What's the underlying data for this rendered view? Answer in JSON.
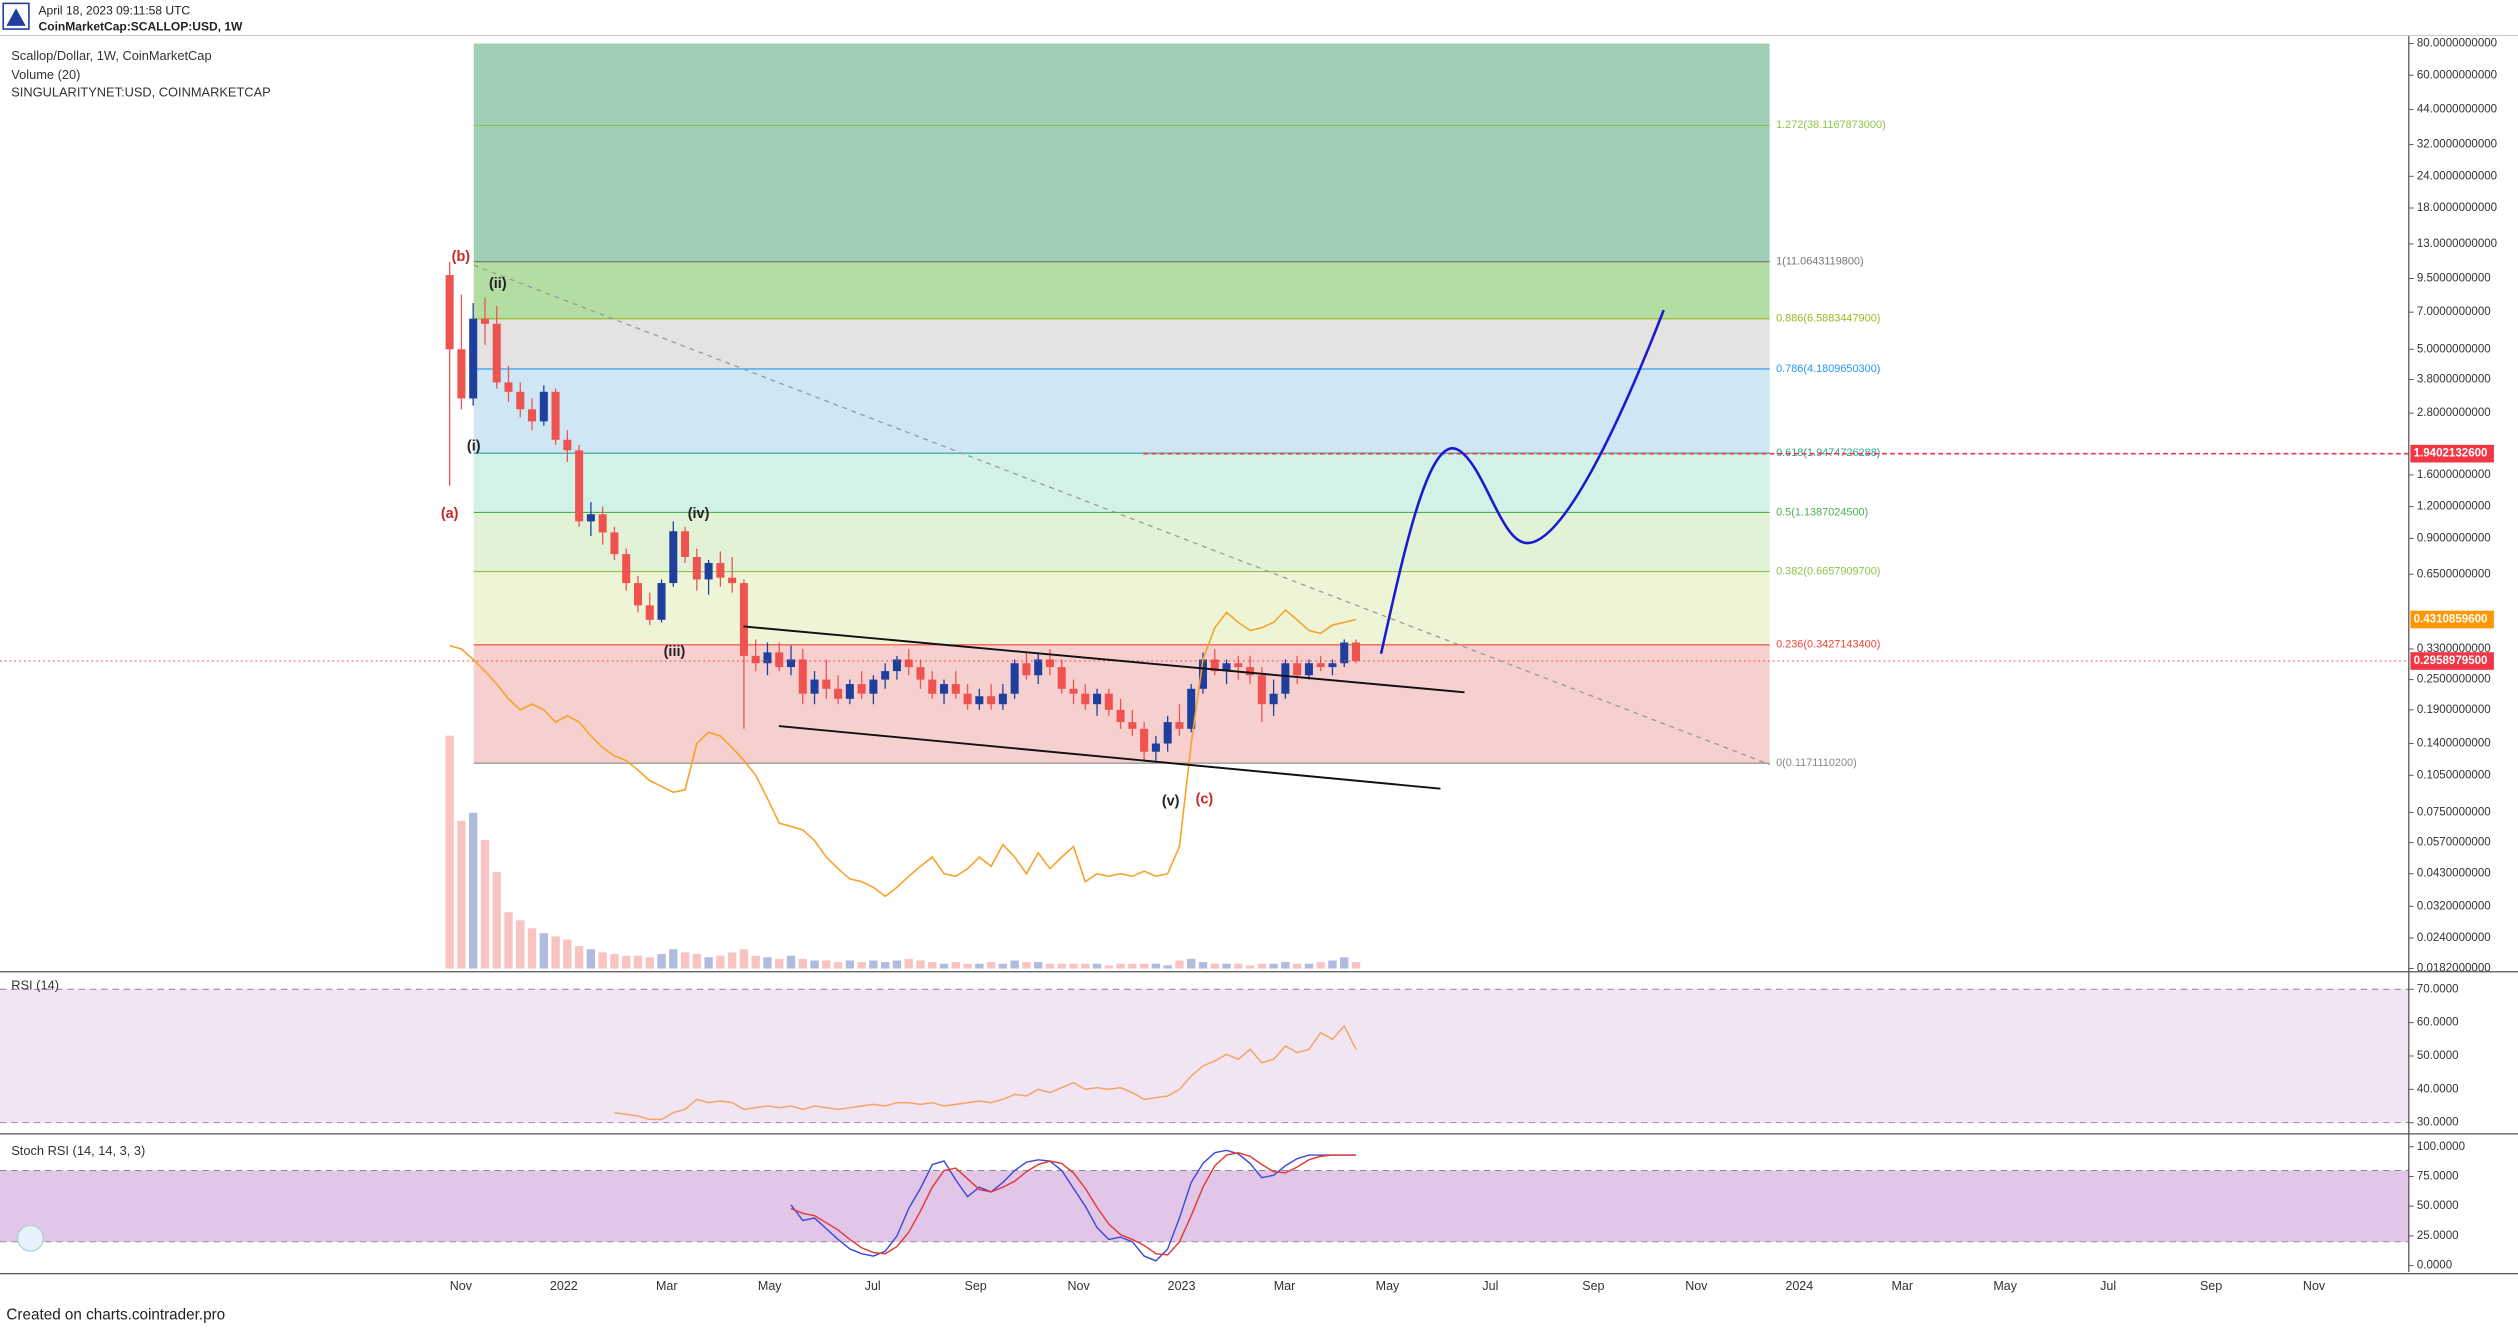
{
  "header": {
    "timestamp": "April 18, 2023 09:11:58 UTC",
    "symbol": "CoinMarketCap:SCALLOP:USD, 1W"
  },
  "footer": "Created on charts.cointrader.pro",
  "time_axis": [
    "Nov",
    "2022",
    "Mar",
    "May",
    "Jul",
    "Sep",
    "Nov",
    "2023",
    "Mar",
    "May",
    "Jul",
    "Sep",
    "Nov",
    "2024",
    "Mar",
    "May",
    "Jul",
    "Sep",
    "Nov"
  ],
  "chart_data": [
    {
      "type": "candlestick",
      "title": "Scallop/Dollar, 1W, CoinMarketCap",
      "log_scale": true,
      "up_color": "#1e3f9e",
      "down_color": "#ef5350",
      "candles": [
        [
          9.8,
          11.06,
          1.45,
          5.0
        ],
        [
          5.0,
          8.2,
          2.9,
          3.2
        ],
        [
          3.2,
          7.6,
          3.0,
          6.6
        ],
        [
          6.6,
          8.0,
          5.2,
          6.3
        ],
        [
          6.3,
          7.4,
          3.5,
          3.7
        ],
        [
          3.7,
          4.3,
          3.1,
          3.4
        ],
        [
          3.4,
          3.7,
          2.7,
          2.9
        ],
        [
          2.9,
          3.2,
          2.4,
          2.6
        ],
        [
          2.6,
          3.6,
          2.5,
          3.4
        ],
        [
          3.4,
          3.5,
          2.1,
          2.2
        ],
        [
          2.2,
          2.4,
          1.8,
          2.0
        ],
        [
          2.0,
          2.1,
          1.0,
          1.05
        ],
        [
          1.05,
          1.25,
          0.92,
          1.12
        ],
        [
          1.12,
          1.2,
          0.85,
          0.95
        ],
        [
          0.95,
          1.0,
          0.74,
          0.78
        ],
        [
          0.78,
          0.82,
          0.56,
          0.6
        ],
        [
          0.6,
          0.64,
          0.46,
          0.49
        ],
        [
          0.49,
          0.55,
          0.41,
          0.43
        ],
        [
          0.43,
          0.62,
          0.42,
          0.6
        ],
        [
          0.6,
          1.05,
          0.58,
          0.96
        ],
        [
          0.96,
          1.0,
          0.72,
          0.76
        ],
        [
          0.76,
          0.82,
          0.56,
          0.62
        ],
        [
          0.62,
          0.74,
          0.54,
          0.72
        ],
        [
          0.72,
          0.8,
          0.58,
          0.63
        ],
        [
          0.63,
          0.76,
          0.55,
          0.6
        ],
        [
          0.6,
          0.62,
          0.16,
          0.31
        ],
        [
          0.31,
          0.36,
          0.27,
          0.29
        ],
        [
          0.29,
          0.35,
          0.26,
          0.32
        ],
        [
          0.32,
          0.35,
          0.27,
          0.28
        ],
        [
          0.28,
          0.34,
          0.26,
          0.3
        ],
        [
          0.3,
          0.33,
          0.2,
          0.22
        ],
        [
          0.22,
          0.27,
          0.2,
          0.25
        ],
        [
          0.25,
          0.3,
          0.21,
          0.23
        ],
        [
          0.23,
          0.26,
          0.2,
          0.21
        ],
        [
          0.21,
          0.25,
          0.2,
          0.24
        ],
        [
          0.24,
          0.27,
          0.21,
          0.22
        ],
        [
          0.22,
          0.26,
          0.2,
          0.25
        ],
        [
          0.25,
          0.29,
          0.23,
          0.27
        ],
        [
          0.27,
          0.31,
          0.25,
          0.3
        ],
        [
          0.3,
          0.33,
          0.26,
          0.28
        ],
        [
          0.28,
          0.3,
          0.23,
          0.25
        ],
        [
          0.25,
          0.27,
          0.21,
          0.22
        ],
        [
          0.22,
          0.25,
          0.2,
          0.24
        ],
        [
          0.24,
          0.27,
          0.21,
          0.22
        ],
        [
          0.22,
          0.24,
          0.19,
          0.2
        ],
        [
          0.2,
          0.23,
          0.19,
          0.215
        ],
        [
          0.215,
          0.24,
          0.19,
          0.2
        ],
        [
          0.2,
          0.24,
          0.19,
          0.22
        ],
        [
          0.22,
          0.3,
          0.21,
          0.29
        ],
        [
          0.29,
          0.32,
          0.25,
          0.26
        ],
        [
          0.26,
          0.32,
          0.24,
          0.3
        ],
        [
          0.3,
          0.33,
          0.26,
          0.28
        ],
        [
          0.28,
          0.3,
          0.22,
          0.23
        ],
        [
          0.23,
          0.25,
          0.2,
          0.22
        ],
        [
          0.22,
          0.24,
          0.19,
          0.2
        ],
        [
          0.2,
          0.23,
          0.18,
          0.22
        ],
        [
          0.22,
          0.23,
          0.18,
          0.19
        ],
        [
          0.19,
          0.21,
          0.16,
          0.17
        ],
        [
          0.17,
          0.19,
          0.15,
          0.16
        ],
        [
          0.16,
          0.17,
          0.12,
          0.13
        ],
        [
          0.13,
          0.15,
          0.12,
          0.14
        ],
        [
          0.14,
          0.18,
          0.13,
          0.17
        ],
        [
          0.17,
          0.2,
          0.15,
          0.16
        ],
        [
          0.16,
          0.24,
          0.155,
          0.23
        ],
        [
          0.23,
          0.32,
          0.22,
          0.3
        ],
        [
          0.3,
          0.33,
          0.26,
          0.27
        ],
        [
          0.27,
          0.3,
          0.24,
          0.29
        ],
        [
          0.29,
          0.31,
          0.25,
          0.28
        ],
        [
          0.28,
          0.31,
          0.24,
          0.26
        ],
        [
          0.26,
          0.28,
          0.17,
          0.2
        ],
        [
          0.2,
          0.25,
          0.18,
          0.22
        ],
        [
          0.22,
          0.3,
          0.21,
          0.29
        ],
        [
          0.29,
          0.31,
          0.24,
          0.26
        ],
        [
          0.26,
          0.3,
          0.25,
          0.29
        ],
        [
          0.29,
          0.31,
          0.27,
          0.28
        ],
        [
          0.28,
          0.3,
          0.26,
          0.29
        ],
        [
          0.29,
          0.36,
          0.28,
          0.35
        ],
        [
          0.35,
          0.36,
          0.29,
          0.29589795
        ]
      ],
      "volume": {
        "name": "Volume (20)",
        "values": [
          145,
          92,
          97,
          80,
          60,
          35,
          30,
          25,
          22,
          20,
          18,
          14,
          12,
          10,
          9,
          8,
          8,
          7,
          9,
          12,
          10,
          9,
          7,
          8,
          10,
          12,
          8,
          7,
          6,
          8,
          6,
          5,
          5,
          4,
          5,
          4,
          5,
          4,
          5,
          6,
          5,
          4,
          3,
          4,
          3,
          3,
          4,
          3,
          5,
          4,
          4,
          3,
          3,
          3,
          3,
          3,
          2,
          3,
          3,
          3,
          3,
          2,
          5,
          6,
          4,
          3,
          3,
          3,
          2,
          3,
          3,
          4,
          3,
          3,
          4,
          5,
          7,
          4
        ]
      },
      "overlay": {
        "name": "SINGULARITYNET:USD, COINMARKETCAP",
        "color": "#f7a32b",
        "values": [
          0.34,
          0.33,
          0.3,
          0.27,
          0.24,
          0.21,
          0.19,
          0.2,
          0.19,
          0.17,
          0.18,
          0.17,
          0.15,
          0.135,
          0.125,
          0.12,
          0.11,
          0.1,
          0.095,
          0.09,
          0.092,
          0.14,
          0.155,
          0.15,
          0.135,
          0.12,
          0.105,
          0.085,
          0.068,
          0.066,
          0.064,
          0.058,
          0.05,
          0.045,
          0.041,
          0.04,
          0.038,
          0.035,
          0.038,
          0.042,
          0.046,
          0.05,
          0.043,
          0.042,
          0.045,
          0.05,
          0.046,
          0.056,
          0.05,
          0.043,
          0.052,
          0.045,
          0.05,
          0.055,
          0.04,
          0.043,
          0.042,
          0.043,
          0.042,
          0.044,
          0.042,
          0.043,
          0.055,
          0.14,
          0.3,
          0.4,
          0.46,
          0.42,
          0.39,
          0.4,
          0.42,
          0.47,
          0.43,
          0.39,
          0.38,
          0.41,
          0.42,
          0.4311
        ]
      },
      "ylim": [
        0.0182,
        80
      ],
      "yticks": [
        {
          "value": 80,
          "label": "80.0000000000"
        },
        {
          "value": 60,
          "label": "60.0000000000"
        },
        {
          "value": 44,
          "label": "44.0000000000"
        },
        {
          "value": 32,
          "label": "32.0000000000"
        },
        {
          "value": 24,
          "label": "24.0000000000"
        },
        {
          "value": 18,
          "label": "18.0000000000"
        },
        {
          "value": 13,
          "label": "13.0000000000"
        },
        {
          "value": 9.5,
          "label": "9.5000000000"
        },
        {
          "value": 7,
          "label": "7.0000000000"
        },
        {
          "value": 5,
          "label": "5.0000000000"
        },
        {
          "value": 3.8,
          "label": "3.8000000000"
        },
        {
          "value": 2.8,
          "label": "2.8000000000"
        },
        {
          "value": 1.6,
          "label": "1.6000000000"
        },
        {
          "value": 1.2,
          "label": "1.2000000000"
        },
        {
          "value": 0.9,
          "label": "0.9000000000"
        },
        {
          "value": 0.65,
          "label": "0.6500000000"
        },
        {
          "value": 0.33,
          "label": "0.3300000000"
        },
        {
          "value": 0.25,
          "label": "0.2500000000"
        },
        {
          "value": 0.19,
          "label": "0.1900000000"
        },
        {
          "value": 0.14,
          "label": "0.1400000000"
        },
        {
          "value": 0.105,
          "label": "0.1050000000"
        },
        {
          "value": 0.075,
          "label": "0.0750000000"
        },
        {
          "value": 0.057,
          "label": "0.0570000000"
        },
        {
          "value": 0.043,
          "label": "0.0430000000"
        },
        {
          "value": 0.032,
          "label": "0.0320000000"
        },
        {
          "value": 0.024,
          "label": "0.0240000000"
        },
        {
          "value": 0.0182,
          "label": "0.0182000000"
        }
      ],
      "fib": [
        {
          "value": 38.1167873,
          "label": "1.272(38.1167873000)",
          "color": "#8bc34a",
          "fill": "#a0cfb6"
        },
        {
          "value": 11.06431198,
          "label": "1(11.0643119800)",
          "color": "#777777",
          "fill": "#b4dda4"
        },
        {
          "value": 6.58834479,
          "label": "0.886(6.5883447900)",
          "color": "#9ab81c",
          "fill": "#e3e3e3"
        },
        {
          "value": 4.18096503,
          "label": "0.786(4.1809650300)",
          "color": "#2196f3",
          "fill": "#cfe6f4"
        },
        {
          "value": 1.9474726288,
          "label": "0.618(1.9474726288)",
          "color": "#26a69a",
          "fill": "#d2f1e7"
        },
        {
          "value": 1.13870245,
          "label": "0.5(1.1387024500)",
          "color": "#4caf50",
          "fill": "#e2f2d6"
        },
        {
          "value": 0.66579097,
          "label": "0.382(0.6657909700)",
          "color": "#8bc34a",
          "fill": "#eef5d6"
        },
        {
          "value": 0.34271434,
          "label": "0.236(0.3427143400)",
          "color": "#f44336",
          "fill": "#f6cfcf"
        },
        {
          "value": 0.11711102,
          "label": "0(0.1171110200)",
          "color": "#888888",
          "fill": "none"
        }
      ],
      "price_lines": [
        {
          "value": 1.94021326,
          "label": "1.9402132600",
          "color": "#f23645"
        },
        {
          "value": 0.43108596,
          "label": "0.4310859600",
          "color": "#ff9800"
        },
        {
          "value": 0.29589795,
          "label": "0.2958979500",
          "color": "#f23645"
        }
      ],
      "wave_labels": [
        "(b)",
        "(ii)",
        "(i)",
        "(a)",
        "(iv)",
        "(iii)",
        "(v)",
        "(c)"
      ]
    },
    {
      "type": "line",
      "title": "RSI (14)",
      "color": "#f4a460",
      "values": [
        null,
        null,
        null,
        null,
        null,
        null,
        null,
        null,
        null,
        null,
        null,
        null,
        null,
        null,
        33,
        32.5,
        32,
        31,
        31,
        33,
        34,
        37,
        36,
        36.5,
        36,
        34,
        34.5,
        35,
        34.5,
        35,
        34,
        35,
        34.5,
        34,
        34.5,
        35,
        35.5,
        35,
        36,
        36,
        35.5,
        36,
        35,
        35.5,
        36,
        36.5,
        36,
        37,
        38.5,
        38,
        40,
        39,
        40.5,
        42,
        40,
        40.5,
        40,
        40.5,
        39,
        37,
        37.5,
        38,
        40,
        44,
        47,
        48.5,
        50.5,
        49,
        52,
        48,
        49,
        53,
        51,
        52,
        57,
        55,
        59,
        52
      ],
      "ylim": [
        27.6,
        74.3
      ],
      "yticks": [
        {
          "value": 30,
          "label": "30.0000"
        },
        {
          "value": 40,
          "label": "40.0000"
        },
        {
          "value": 50,
          "label": "50.0000"
        },
        {
          "value": 60,
          "label": "60.0000"
        },
        {
          "value": 70,
          "label": "70.0000"
        }
      ],
      "bands": [
        30,
        70
      ]
    },
    {
      "type": "line",
      "title": "Stoch RSI (14, 14, 3, 3)",
      "series": [
        {
          "color": "#3d4bd8",
          "values": [
            null,
            null,
            null,
            null,
            null,
            null,
            null,
            null,
            null,
            null,
            null,
            null,
            null,
            null,
            null,
            null,
            null,
            null,
            null,
            null,
            null,
            null,
            null,
            null,
            null,
            null,
            null,
            null,
            null,
            51,
            38,
            40,
            31,
            22,
            14,
            10,
            8,
            12,
            25,
            48,
            65,
            85,
            88,
            72,
            58,
            66,
            62,
            70,
            80,
            87,
            89,
            88,
            80,
            65,
            50,
            32,
            22,
            24,
            20,
            8,
            4,
            14,
            40,
            70,
            86,
            95,
            97,
            94,
            86,
            74,
            76,
            84,
            90,
            93,
            93,
            93,
            93,
            93
          ]
        },
        {
          "color": "#e53935",
          "values": [
            null,
            null,
            null,
            null,
            null,
            null,
            null,
            null,
            null,
            null,
            null,
            null,
            null,
            null,
            null,
            null,
            null,
            null,
            null,
            null,
            null,
            null,
            null,
            null,
            null,
            null,
            null,
            null,
            null,
            48,
            44,
            42,
            36,
            30,
            22,
            15,
            11,
            10,
            16,
            28,
            46,
            66,
            80,
            82,
            73,
            64,
            62,
            66,
            71,
            79,
            85,
            88,
            86,
            78,
            65,
            49,
            35,
            26,
            22,
            17,
            10,
            9,
            20,
            42,
            66,
            84,
            93,
            95,
            92,
            85,
            79,
            78,
            83,
            89,
            92,
            93,
            93,
            93
          ]
        }
      ],
      "ylim": [
        -5.4,
        108.1
      ],
      "yticks": [
        {
          "value": 0,
          "label": "0.0000"
        },
        {
          "value": 25,
          "label": "25.0000"
        },
        {
          "value": 50,
          "label": "50.0000"
        },
        {
          "value": 75,
          "label": "75.0000"
        },
        {
          "value": 100,
          "label": "100.0000"
        }
      ],
      "bands": [
        20,
        80
      ]
    }
  ]
}
